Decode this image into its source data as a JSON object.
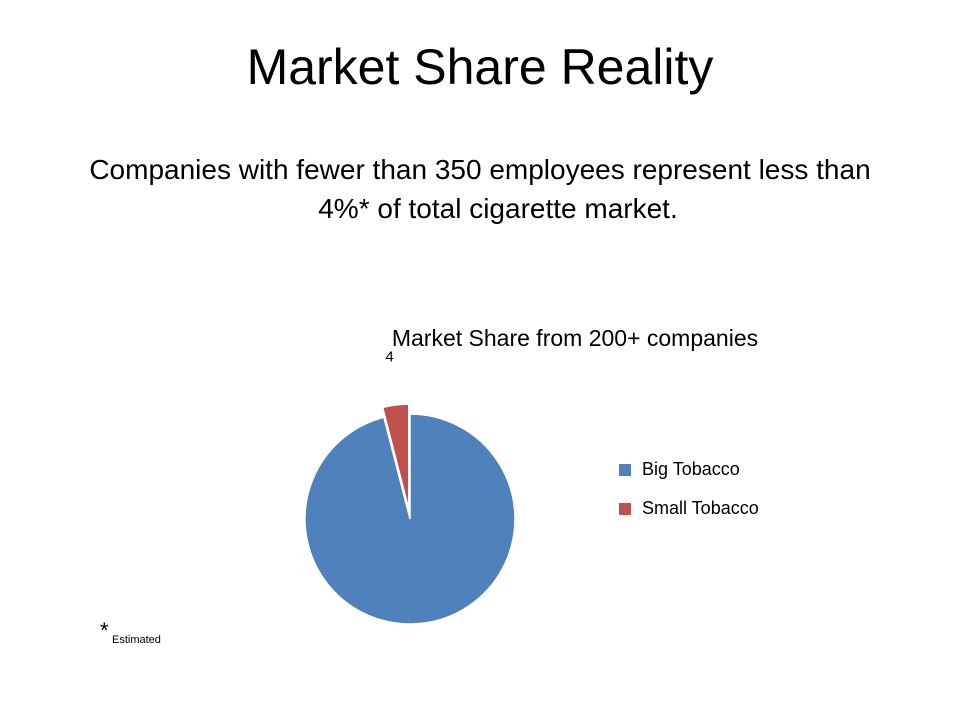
{
  "slide": {
    "title": "Market Share Reality",
    "body": "Companies with fewer than 350 employees represent less than 4%* of total cigarette market.",
    "footnote": {
      "mark": "*",
      "text": "Estimated"
    }
  },
  "chart_data": {
    "type": "pie",
    "title": "Market Share from 200+ companies",
    "categories": [
      "Big Tobacco",
      "Small Tobacco"
    ],
    "values": [
      96,
      4
    ],
    "value_labels": [
      null,
      "4"
    ],
    "colors": [
      "#4f81bd",
      "#c0504d"
    ],
    "legend": "right"
  }
}
